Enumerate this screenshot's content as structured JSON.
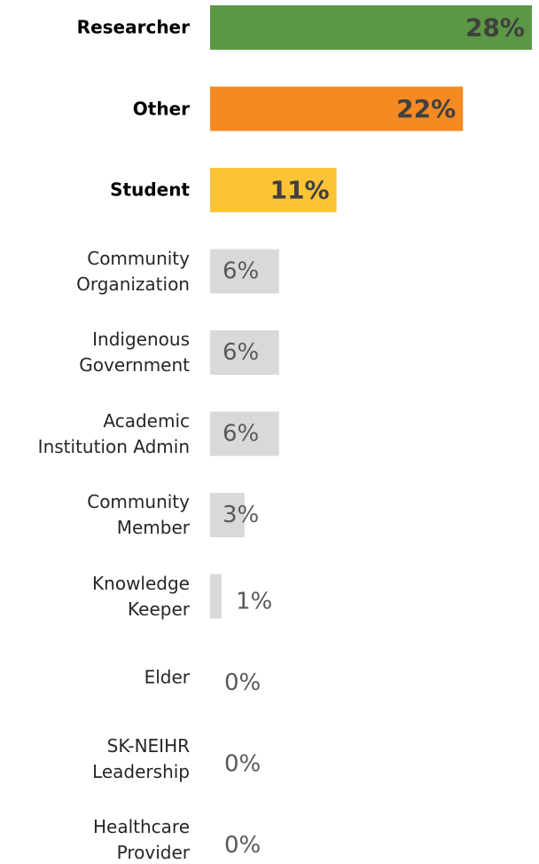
{
  "chart_data": {
    "type": "hbar",
    "categories": [
      "Researcher",
      "Other",
      "Student",
      "Community\nOrganization",
      "Indigenous\nGovernment",
      "Academic\nInstitution Admin",
      "Community\nMember",
      "Knowledge\nKeeper",
      "Elder",
      "SK-NEIHR\nLeadership",
      "Healthcare\nProvider"
    ],
    "values": [
      28,
      22,
      11,
      6,
      6,
      6,
      3,
      1,
      0,
      0,
      0
    ],
    "value_labels": [
      "28%",
      "22%",
      "11%",
      "6%",
      "6%",
      "6%",
      "3%",
      "1%",
      "0%",
      "0%",
      "0%"
    ],
    "colors": [
      "#5b9745",
      "#f58a23",
      "#fcc335",
      "#d9d9d9",
      "#d9d9d9",
      "#d9d9d9",
      "#d9d9d9",
      "#d9d9d9",
      "#d9d9d9",
      "#d9d9d9",
      "#d9d9d9"
    ],
    "xlim": [
      0,
      28
    ]
  }
}
